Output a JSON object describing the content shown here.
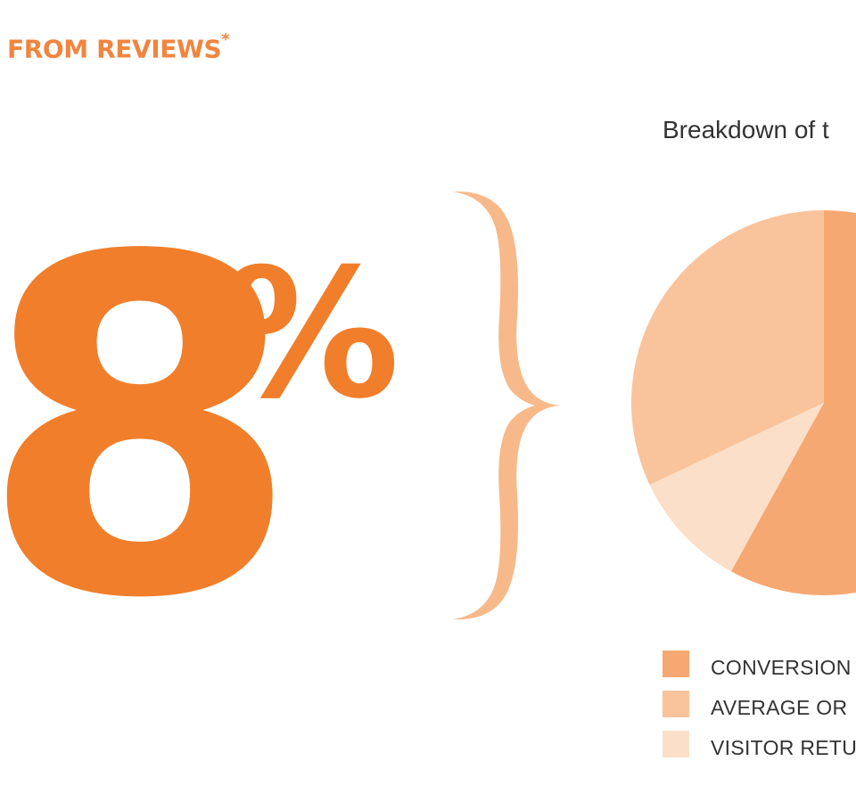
{
  "heading": {
    "text": "FROM REVIEWS",
    "marker": "*"
  },
  "headline": {
    "number": "8",
    "unit": "%"
  },
  "colors": {
    "accent": "#f17e2a",
    "brace": "#f7b98a",
    "slice_conversion": "#f6a872",
    "slice_average_order": "#f9c49c",
    "slice_visitor_return": "#fcdfc8"
  },
  "chart_data": {
    "type": "pie",
    "title": "Breakdown of t",
    "slices": [
      {
        "label": "CONVERSION",
        "value": 58
      },
      {
        "label": "AVERAGE OR",
        "value": 32
      },
      {
        "label": "VISITOR RETU",
        "value": 10
      }
    ],
    "legend": [
      "CONVERSION",
      "AVERAGE OR",
      "VISITOR RETU"
    ],
    "legend_placement": "bottom"
  }
}
